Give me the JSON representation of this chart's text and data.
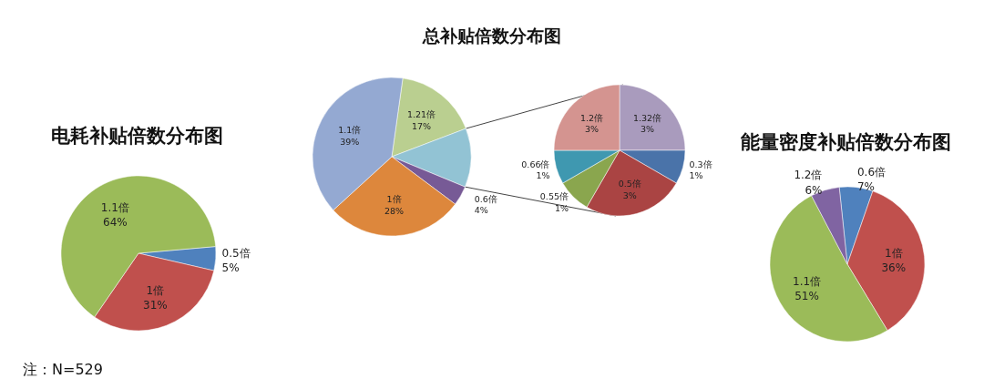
{
  "chart_data": [
    {
      "type": "pie",
      "title": "电耗补贴倍数分布图",
      "categories": [
        "0.5倍",
        "1倍",
        "1.1倍"
      ],
      "values": [
        5,
        31,
        64
      ],
      "value_labels": [
        "5%",
        "31%",
        "64%"
      ],
      "colors": [
        "#4f81bd",
        "#c0504d",
        "#9bbb59"
      ],
      "annotations": [
        "注：N=529"
      ]
    },
    {
      "type": "pie",
      "title": "总补贴倍数分布图",
      "categories": [
        "1.21倍",
        null,
        "0.6倍",
        "1倍",
        "1.1倍"
      ],
      "values": [
        17,
        12,
        4,
        28,
        39
      ],
      "value_labels": [
        "17%",
        null,
        "4%",
        "28%",
        "39%"
      ],
      "colors": [
        "#bacf90",
        "#92c3d4",
        "#775a96",
        "#dd873c",
        "#94a9d2"
      ]
    },
    {
      "type": "pie",
      "categories": [
        "1.32倍",
        "0.3倍",
        "0.5倍",
        "0.55倍",
        "0.66倍",
        "1.2倍"
      ],
      "values": [
        3,
        1,
        3,
        1,
        1,
        3
      ],
      "value_labels": [
        "3%",
        "1%",
        "3%",
        "1%",
        "1%",
        "3%"
      ],
      "colors": [
        "#a99bbd",
        "#4a73a9",
        "#aa4443",
        "#8aa64e",
        "#3f98b0",
        "#d49490"
      ]
    },
    {
      "type": "pie",
      "title": "能量密度补贴倍数分布图",
      "categories": [
        "0.6倍",
        "1倍",
        "1.1倍",
        "1.2倍"
      ],
      "values": [
        7,
        36,
        51,
        6
      ],
      "value_labels": [
        "7%",
        "36%",
        "51%",
        "6%"
      ],
      "colors": [
        "#4f81bd",
        "#c0504d",
        "#9bbb59",
        "#8064a2"
      ]
    }
  ]
}
